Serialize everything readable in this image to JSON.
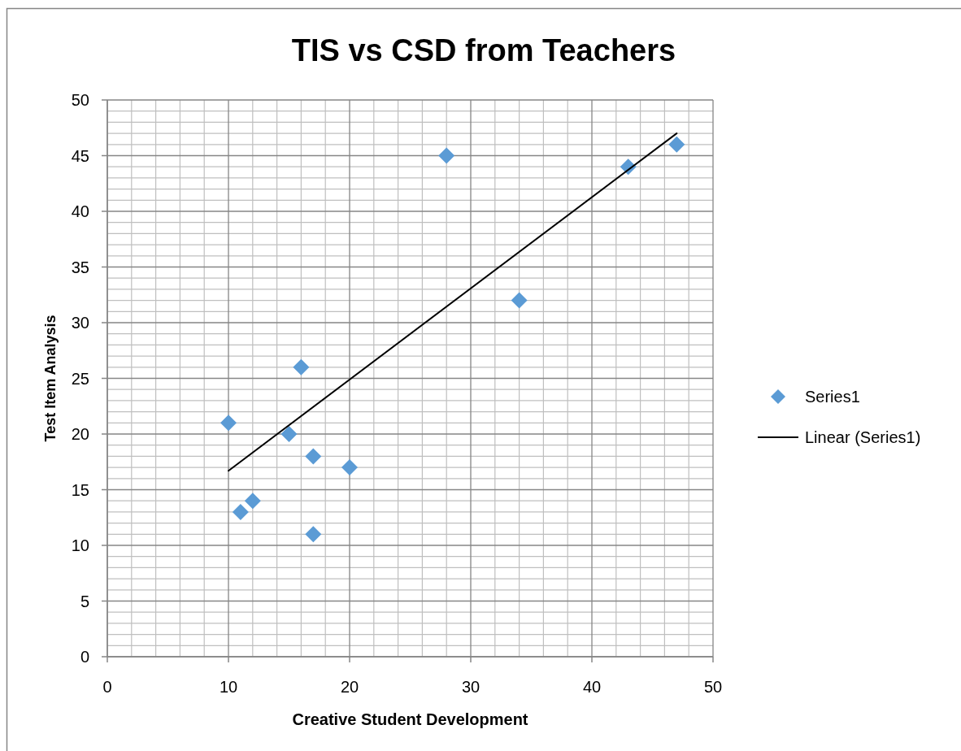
{
  "chart_data": {
    "type": "scatter",
    "title": "TIS vs CSD from Teachers",
    "xlabel": "Creative Student Development",
    "ylabel": "Test Item Analysis",
    "xlim": [
      0,
      50
    ],
    "ylim": [
      0,
      50
    ],
    "xticks": [
      0,
      10,
      20,
      30,
      40,
      50
    ],
    "yticks": [
      0,
      5,
      10,
      15,
      20,
      25,
      30,
      35,
      40,
      45,
      50
    ],
    "grid": true,
    "legend": "right",
    "series": [
      {
        "name": "Series1",
        "marker": "diamond",
        "color": "#5b9bd5",
        "x": [
          10,
          11,
          12,
          15,
          16,
          17,
          17,
          20,
          28,
          34,
          43,
          47
        ],
        "values": [
          21,
          13,
          14,
          20,
          26,
          18,
          11,
          17,
          45,
          32,
          44,
          46
        ]
      },
      {
        "name": "Linear (Series1)",
        "type": "line",
        "color": "#000000",
        "x": [
          10,
          47
        ],
        "values": [
          16.7,
          47
        ]
      }
    ]
  }
}
